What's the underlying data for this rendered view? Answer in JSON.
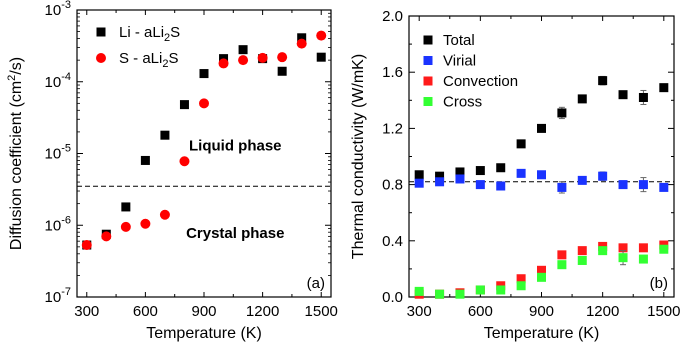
{
  "chart_data": [
    {
      "type": "scatter",
      "panel_label": "(a)",
      "xlabel": "Temperature (K)",
      "ylabel_main": "Diffusion coefficient (cm",
      "ylabel_sup": "2",
      "ylabel_end": "/s)",
      "xlim": [
        250,
        1550
      ],
      "ylim": [
        1e-07,
        0.001
      ],
      "yscale": "log",
      "xticks": [
        300,
        600,
        900,
        1200,
        1500
      ],
      "xtick_labels": [
        "300",
        "600",
        "900",
        "1200",
        "1500"
      ],
      "yticks": [
        1e-07,
        1e-06,
        1e-05,
        0.0001,
        0.001
      ],
      "ytick_labels": [
        {
          "base": "10",
          "exp": "-7"
        },
        {
          "base": "10",
          "exp": "-6"
        },
        {
          "base": "10",
          "exp": "-5"
        },
        {
          "base": "10",
          "exp": "-4"
        },
        {
          "base": "10",
          "exp": "-3"
        }
      ],
      "hline": 3.5e-06,
      "annotations": [
        {
          "text": "Liquid phase",
          "x": 1060,
          "y": 1.1e-05
        },
        {
          "text": "Crystal phase",
          "x": 1060,
          "y": 6.6e-07
        }
      ],
      "legend_position": "top-left",
      "series": [
        {
          "label_main": "Li - aLi",
          "label_sub": "2",
          "label_end": "S",
          "marker": "square",
          "color": "#000000",
          "x": [
            300,
            400,
            500,
            600,
            700,
            800,
            900,
            1000,
            1100,
            1200,
            1300,
            1400,
            1500
          ],
          "y": [
            5.3e-07,
            7.5e-07,
            1.8e-06,
            8e-06,
            1.8e-05,
            4.8e-05,
            0.00013,
            0.00021,
            0.00028,
            0.00021,
            0.00014,
            0.00041,
            0.00022
          ]
        },
        {
          "label_main": "S - aLi",
          "label_sub": "2",
          "label_end": "S",
          "marker": "circle",
          "color": "#ff0000",
          "x": [
            300,
            400,
            500,
            600,
            700,
            800,
            900,
            1000,
            1100,
            1200,
            1300,
            1400,
            1500
          ],
          "y": [
            5.3e-07,
            7e-07,
            9.5e-07,
            1.05e-06,
            1.4e-06,
            7.8e-06,
            5e-05,
            0.00018,
            0.0002,
            0.000215,
            0.00022,
            0.00034,
            0.00044
          ]
        }
      ]
    },
    {
      "type": "scatter",
      "panel_label": "(b)",
      "xlabel": "Temperature (K)",
      "ylabel": "Thermal conductivity (W/mK)",
      "xlim": [
        250,
        1550
      ],
      "ylim": [
        0,
        2.0
      ],
      "xticks": [
        300,
        600,
        900,
        1200,
        1500
      ],
      "xtick_labels": [
        "300",
        "600",
        "900",
        "1200",
        "1500"
      ],
      "yticks": [
        0,
        0.4,
        0.8,
        1.2,
        1.6,
        2.0
      ],
      "ytick_labels": [
        "0.0",
        "0.4",
        "0.8",
        "1.2",
        "1.6",
        "2.0"
      ],
      "hline": 0.82,
      "legend_position": "top-left",
      "series": [
        {
          "name": "Total",
          "marker": "square",
          "color": "#000000",
          "x": [
            300,
            400,
            500,
            600,
            700,
            800,
            900,
            1000,
            1100,
            1200,
            1300,
            1400,
            1500
          ],
          "y": [
            0.87,
            0.86,
            0.89,
            0.9,
            0.92,
            1.09,
            1.2,
            1.31,
            1.41,
            1.54,
            1.44,
            1.42,
            1.49
          ],
          "err": [
            0.02,
            0.02,
            0.02,
            0.02,
            0.02,
            0.02,
            0.02,
            0.04,
            0.02,
            0.03,
            0.02,
            0.05,
            0.02
          ]
        },
        {
          "name": "Virial",
          "marker": "square",
          "color": "#1a33ff",
          "x": [
            300,
            400,
            500,
            600,
            700,
            800,
            900,
            1000,
            1100,
            1200,
            1300,
            1400,
            1500
          ],
          "y": [
            0.81,
            0.82,
            0.84,
            0.8,
            0.79,
            0.88,
            0.87,
            0.78,
            0.83,
            0.86,
            0.8,
            0.8,
            0.78
          ],
          "err": [
            0.02,
            0.02,
            0.02,
            0.02,
            0.02,
            0.02,
            0.02,
            0.04,
            0.02,
            0.03,
            0.02,
            0.05,
            0.02
          ]
        },
        {
          "name": "Convection",
          "marker": "square",
          "color": "#ff1a1a",
          "x": [
            300,
            400,
            500,
            600,
            700,
            800,
            900,
            1000,
            1100,
            1200,
            1300,
            1400,
            1500
          ],
          "y": [
            0.02,
            0.02,
            0.03,
            0.05,
            0.08,
            0.13,
            0.19,
            0.3,
            0.33,
            0.36,
            0.35,
            0.35,
            0.37
          ],
          "err": [
            0,
            0,
            0,
            0,
            0,
            0,
            0,
            0,
            0,
            0,
            0,
            0,
            0
          ]
        },
        {
          "name": "Cross",
          "marker": "square",
          "color": "#33ff33",
          "x": [
            300,
            400,
            500,
            600,
            700,
            800,
            900,
            1000,
            1100,
            1200,
            1300,
            1400,
            1500
          ],
          "y": [
            0.04,
            0.02,
            0.02,
            0.05,
            0.05,
            0.08,
            0.14,
            0.23,
            0.26,
            0.33,
            0.28,
            0.27,
            0.34
          ],
          "err": [
            0.01,
            0.01,
            0.01,
            0.01,
            0.01,
            0.01,
            0.01,
            0.02,
            0.01,
            0.02,
            0.05,
            0.02,
            0.02
          ]
        }
      ]
    }
  ]
}
